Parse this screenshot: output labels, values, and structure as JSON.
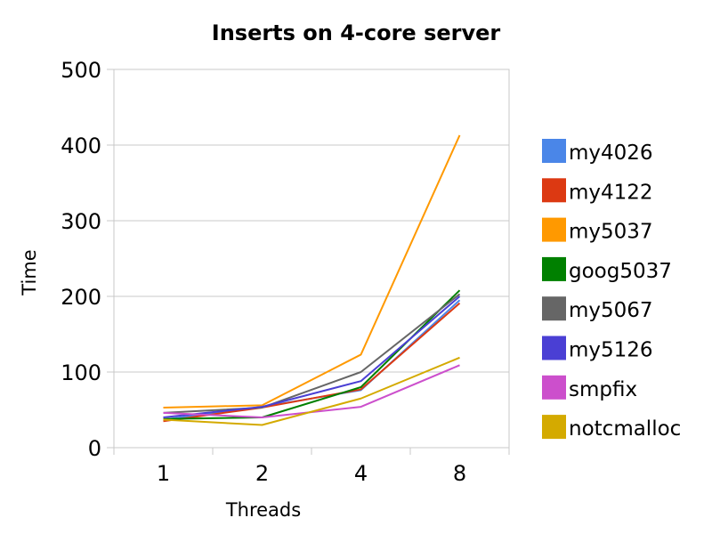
{
  "chart_data": {
    "type": "line",
    "title": "Inserts on 4-core server",
    "xlabel": "Threads",
    "ylabel": "Time",
    "categories": [
      "1",
      "2",
      "4",
      "8"
    ],
    "ylim": [
      0,
      500
    ],
    "yticks": [
      "0",
      "100",
      "200",
      "300",
      "400",
      "500"
    ],
    "grid": true,
    "legend_position": "right",
    "series": [
      {
        "name": "my4026",
        "color": "#4a86e8",
        "values": [
          37,
          54,
          76,
          195
        ]
      },
      {
        "name": "my4122",
        "color": "#dc3912",
        "values": [
          35,
          53,
          77,
          191
        ]
      },
      {
        "name": "my5037",
        "color": "#ff9900",
        "values": [
          53,
          56,
          123,
          413
        ]
      },
      {
        "name": "goog5037",
        "color": "#008000",
        "values": [
          38,
          40,
          80,
          208
        ]
      },
      {
        "name": "my5067",
        "color": "#666666",
        "values": [
          46,
          53,
          100,
          203
        ]
      },
      {
        "name": "my5126",
        "color": "#4a3fd4",
        "values": [
          40,
          54,
          88,
          200
        ]
      },
      {
        "name": "smpfix",
        "color": "#cc4fcc",
        "values": [
          46,
          40,
          54,
          109
        ]
      },
      {
        "name": "notcmalloc",
        "color": "#d4aa00",
        "values": [
          37,
          30,
          65,
          119
        ]
      }
    ]
  }
}
